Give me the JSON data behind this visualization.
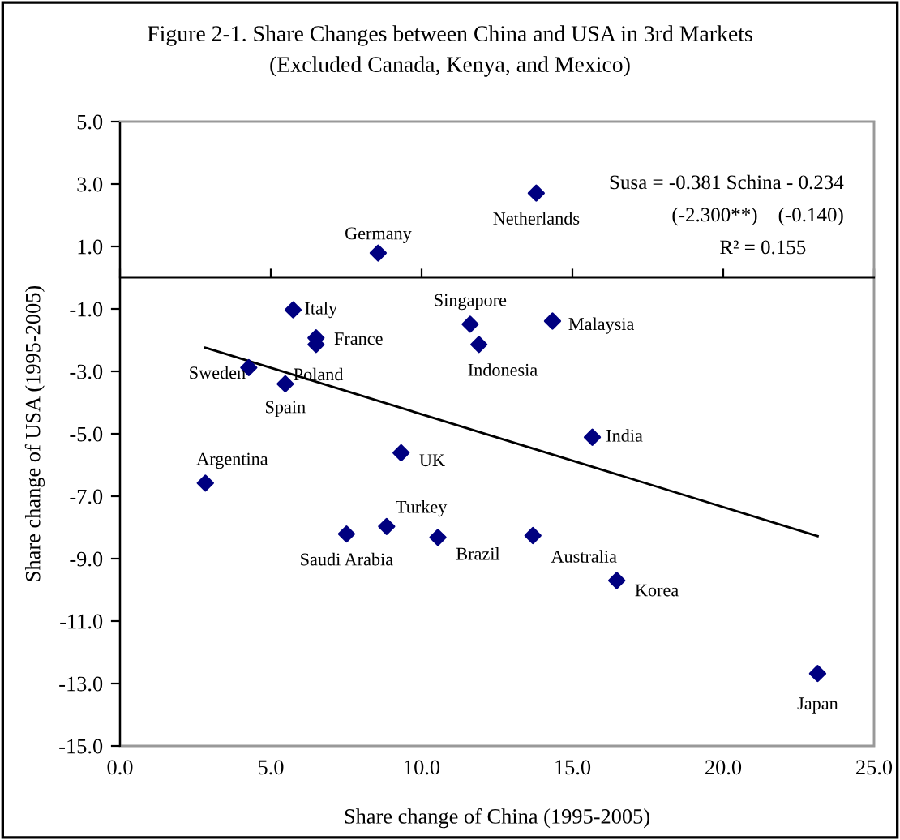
{
  "chart_data": {
    "type": "scatter",
    "title": "Figure 2-1. Share Changes between China and USA in 3rd Markets",
    "subtitle": "(Excluded Canada, Kenya, and Mexico)",
    "xlabel": "Share change of China (1995-2005)",
    "ylabel": "Share change of USA (1995-2005)",
    "xlim": [
      0,
      25
    ],
    "ylim": [
      -15,
      5
    ],
    "xticks": [
      {
        "value": 0,
        "label": "0.0"
      },
      {
        "value": 5,
        "label": "5.0"
      },
      {
        "value": 10,
        "label": "10.0"
      },
      {
        "value": 15,
        "label": "15.0"
      },
      {
        "value": 20,
        "label": "20.0"
      },
      {
        "value": 25,
        "label": "25.0"
      }
    ],
    "yticks": [
      {
        "value": 5,
        "label": "5.0"
      },
      {
        "value": 3,
        "label": "3.0"
      },
      {
        "value": 1,
        "label": "1.0"
      },
      {
        "value": -1,
        "label": "-1.0"
      },
      {
        "value": -3,
        "label": "-3.0"
      },
      {
        "value": -5,
        "label": "-5.0"
      },
      {
        "value": -7,
        "label": "-7.0"
      },
      {
        "value": -9,
        "label": "-9.0"
      },
      {
        "value": -11,
        "label": "-11.0"
      },
      {
        "value": -13,
        "label": "-13.0"
      },
      {
        "value": -15,
        "label": "-15.0"
      }
    ],
    "grid": false,
    "marker": "diamond",
    "series": [
      {
        "color": "#000080",
        "x": [
          13.8,
          8.56,
          5.74,
          6.5,
          6.5,
          4.27,
          5.48,
          11.61,
          11.9,
          9.32,
          2.83,
          14.34,
          15.66,
          7.51,
          8.84,
          10.54,
          13.69,
          16.47,
          23.13
        ],
        "values": [
          2.71,
          0.79,
          -1.03,
          -1.93,
          -2.14,
          -2.88,
          -3.4,
          -1.49,
          -2.14,
          -5.61,
          -6.58,
          -1.39,
          -5.11,
          -8.21,
          -7.97,
          -8.32,
          -8.26,
          -9.7,
          -12.68
        ]
      },
      {
        "type": "line",
        "color": "#000000",
        "marker": "none",
        "x": [
          2.83,
          23.13
        ],
        "values": [
          -2.24,
          -8.28
        ]
      }
    ],
    "annotations": [
      {
        "text": "Netherlands",
        "x": 13.8,
        "y": 2.71
      },
      {
        "text": "Germany",
        "x": 8.56,
        "y": 0.79
      },
      {
        "text": "Italy",
        "x": 5.74,
        "y": -1.03
      },
      {
        "text": "France",
        "x": 6.5,
        "y": -1.93
      },
      {
        "text": "Poland",
        "x": 6.5,
        "y": -2.14
      },
      {
        "text": "Sweden",
        "x": 4.27,
        "y": -2.88
      },
      {
        "text": "Spain",
        "x": 5.48,
        "y": -3.4
      },
      {
        "text": "Singapore",
        "x": 11.61,
        "y": -1.49
      },
      {
        "text": "Indonesia",
        "x": 11.9,
        "y": -2.14
      },
      {
        "text": "UK",
        "x": 9.32,
        "y": -5.61
      },
      {
        "text": "Argentina",
        "x": 2.83,
        "y": -6.58
      },
      {
        "text": "Malaysia",
        "x": 14.34,
        "y": -1.39
      },
      {
        "text": "India",
        "x": 15.66,
        "y": -5.11
      },
      {
        "text": "Saudi Arabia",
        "x": 7.51,
        "y": -8.21
      },
      {
        "text": "Turkey",
        "x": 8.84,
        "y": -7.97
      },
      {
        "text": "Brazil",
        "x": 10.54,
        "y": -8.32
      },
      {
        "text": "Australia",
        "x": 13.69,
        "y": -8.26
      },
      {
        "text": "Korea",
        "x": 16.47,
        "y": -9.7
      },
      {
        "text": "Japan",
        "x": 23.13,
        "y": -12.68
      },
      "Susa = -0.381 Schina - 0.234",
      "(-2.300**)    (-0.140)",
      "R² = 0.155"
    ]
  }
}
